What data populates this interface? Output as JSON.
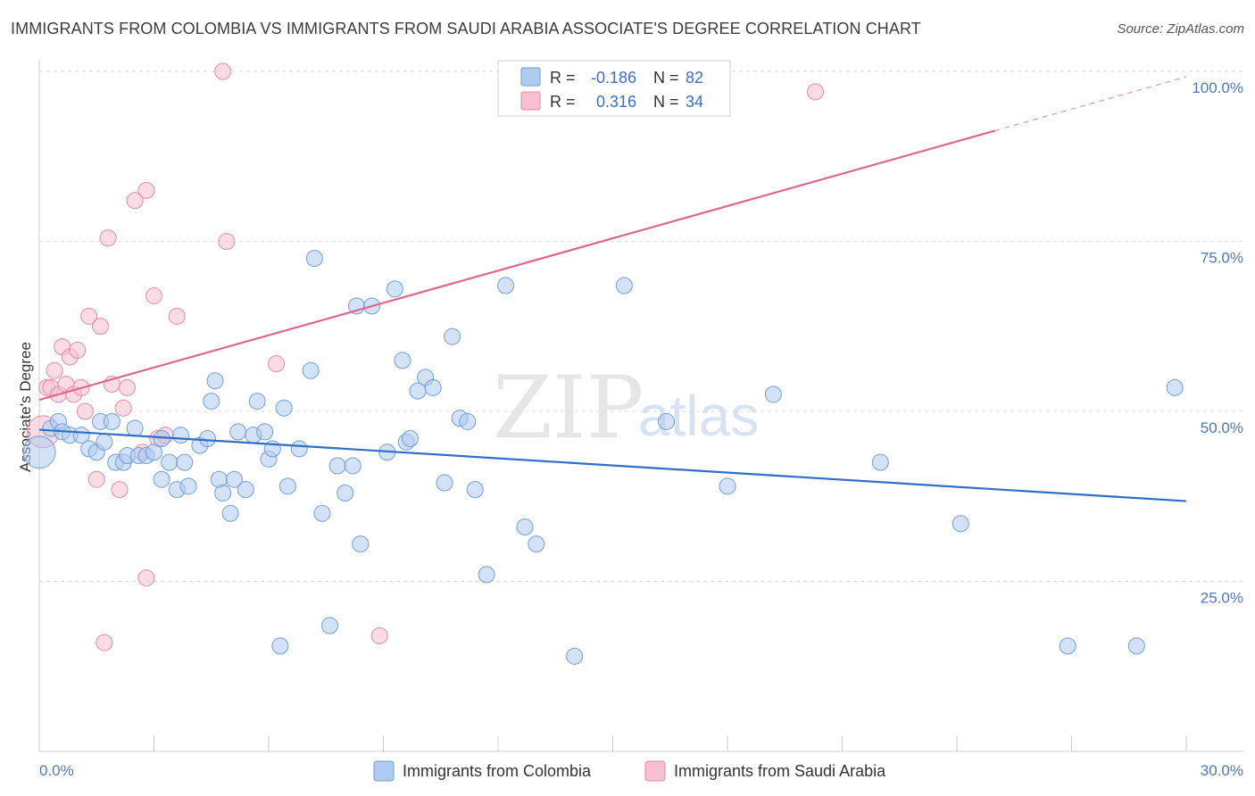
{
  "header": {
    "title": "IMMIGRANTS FROM COLOMBIA VS IMMIGRANTS FROM SAUDI ARABIA ASSOCIATE'S DEGREE CORRELATION CHART",
    "source": "Source: ZipAtlas.com"
  },
  "watermark": {
    "zip": "ZIP",
    "atlas": "atlas"
  },
  "colors": {
    "colombia_fill": "#aecbf0",
    "colombia_stroke": "#6f9fd8",
    "colombia_line": "#2f6fc6",
    "saudi_fill": "#f7c0d0",
    "saudi_stroke": "#e68aa6",
    "saudi_line": "#e0668f",
    "tick_label": "#4a78c4",
    "grid": "#dddddd"
  },
  "legend": {
    "rows": [
      {
        "r_label": "R =",
        "r_value": "-0.186",
        "n_label": "N =",
        "n_value": "82"
      },
      {
        "r_label": "R =",
        "r_value": "0.316",
        "n_label": "N =",
        "n_value": "34"
      }
    ]
  },
  "chart_data": {
    "type": "scatter",
    "title": "IMMIGRANTS FROM COLOMBIA VS IMMIGRANTS FROM SAUDI ARABIA ASSOCIATE'S DEGREE CORRELATION CHART",
    "xlabel": "",
    "ylabel": "Associate's Degree",
    "xlim": [
      0,
      30
    ],
    "ylim": [
      0,
      100
    ],
    "x_tick_labels": [
      "0.0%",
      "30.0%"
    ],
    "y_ticks": [
      25,
      50,
      75,
      100
    ],
    "y_tick_labels": [
      "25.0%",
      "50.0%",
      "75.0%",
      "100.0%"
    ],
    "grid": true,
    "series": [
      {
        "name": "Immigrants from Colombia",
        "r": -0.186,
        "n": 82,
        "trend": {
          "x": [
            0,
            30
          ],
          "y": [
            47.3,
            36.8
          ],
          "dashed_from_x": null
        },
        "points": [
          {
            "x": 0.0,
            "y": 44.0,
            "big": true
          },
          {
            "x": 0.3,
            "y": 47.5
          },
          {
            "x": 0.5,
            "y": 48.5
          },
          {
            "x": 0.6,
            "y": 47.0
          },
          {
            "x": 0.8,
            "y": 46.5
          },
          {
            "x": 1.1,
            "y": 46.5
          },
          {
            "x": 1.3,
            "y": 44.5
          },
          {
            "x": 1.5,
            "y": 44.0
          },
          {
            "x": 1.6,
            "y": 48.5
          },
          {
            "x": 1.7,
            "y": 45.5
          },
          {
            "x": 1.9,
            "y": 48.5
          },
          {
            "x": 2.0,
            "y": 42.5
          },
          {
            "x": 2.2,
            "y": 42.5
          },
          {
            "x": 2.3,
            "y": 43.5
          },
          {
            "x": 2.5,
            "y": 47.5
          },
          {
            "x": 2.6,
            "y": 43.5
          },
          {
            "x": 2.8,
            "y": 43.5
          },
          {
            "x": 3.0,
            "y": 44.0
          },
          {
            "x": 3.2,
            "y": 46.0
          },
          {
            "x": 3.2,
            "y": 40.0
          },
          {
            "x": 3.4,
            "y": 42.5
          },
          {
            "x": 3.6,
            "y": 38.5
          },
          {
            "x": 3.7,
            "y": 46.5
          },
          {
            "x": 3.8,
            "y": 42.5
          },
          {
            "x": 3.9,
            "y": 39.0
          },
          {
            "x": 4.2,
            "y": 45.0
          },
          {
            "x": 4.4,
            "y": 46.0
          },
          {
            "x": 4.5,
            "y": 51.5
          },
          {
            "x": 4.6,
            "y": 54.5
          },
          {
            "x": 4.7,
            "y": 40.0
          },
          {
            "x": 4.8,
            "y": 38.0
          },
          {
            "x": 5.0,
            "y": 35.0
          },
          {
            "x": 5.1,
            "y": 40.0
          },
          {
            "x": 5.2,
            "y": 47.0
          },
          {
            "x": 5.4,
            "y": 38.5
          },
          {
            "x": 5.6,
            "y": 46.5
          },
          {
            "x": 5.7,
            "y": 51.5
          },
          {
            "x": 5.9,
            "y": 47.0
          },
          {
            "x": 6.0,
            "y": 43.0
          },
          {
            "x": 6.1,
            "y": 44.5
          },
          {
            "x": 6.3,
            "y": 15.5
          },
          {
            "x": 6.4,
            "y": 50.5
          },
          {
            "x": 6.5,
            "y": 39.0
          },
          {
            "x": 6.8,
            "y": 44.5
          },
          {
            "x": 7.1,
            "y": 56.0
          },
          {
            "x": 7.2,
            "y": 72.5
          },
          {
            "x": 7.4,
            "y": 35.0
          },
          {
            "x": 7.6,
            "y": 18.5
          },
          {
            "x": 7.8,
            "y": 42.0
          },
          {
            "x": 8.0,
            "y": 38.0
          },
          {
            "x": 8.2,
            "y": 42.0
          },
          {
            "x": 8.3,
            "y": 65.5
          },
          {
            "x": 8.4,
            "y": 30.5
          },
          {
            "x": 8.7,
            "y": 65.5
          },
          {
            "x": 9.1,
            "y": 44.0
          },
          {
            "x": 9.3,
            "y": 68.0
          },
          {
            "x": 9.5,
            "y": 57.5
          },
          {
            "x": 9.6,
            "y": 45.5
          },
          {
            "x": 9.7,
            "y": 46.0
          },
          {
            "x": 9.9,
            "y": 53.0
          },
          {
            "x": 10.1,
            "y": 55.0
          },
          {
            "x": 10.3,
            "y": 53.5
          },
          {
            "x": 10.6,
            "y": 39.5
          },
          {
            "x": 10.8,
            "y": 61.0
          },
          {
            "x": 11.0,
            "y": 49.0
          },
          {
            "x": 11.2,
            "y": 48.5
          },
          {
            "x": 11.4,
            "y": 38.5
          },
          {
            "x": 11.7,
            "y": 26.0
          },
          {
            "x": 12.2,
            "y": 68.5
          },
          {
            "x": 12.7,
            "y": 33.0
          },
          {
            "x": 13.0,
            "y": 30.5
          },
          {
            "x": 14.0,
            "y": 14.0
          },
          {
            "x": 15.3,
            "y": 68.5
          },
          {
            "x": 16.4,
            "y": 48.5
          },
          {
            "x": 18.0,
            "y": 39.0
          },
          {
            "x": 19.2,
            "y": 52.5
          },
          {
            "x": 22.0,
            "y": 42.5
          },
          {
            "x": 24.1,
            "y": 33.5
          },
          {
            "x": 26.9,
            "y": 15.5
          },
          {
            "x": 28.7,
            "y": 15.5
          },
          {
            "x": 29.7,
            "y": 53.5
          }
        ]
      },
      {
        "name": "Immigrants from Saudi Arabia",
        "r": 0.316,
        "n": 34,
        "trend": {
          "x": [
            0,
            30
          ],
          "y": [
            51.7,
            99.2
          ],
          "dashed_from_x": 25.0
        },
        "points": [
          {
            "x": 0.1,
            "y": 47.0,
            "big": true
          },
          {
            "x": 0.2,
            "y": 53.5
          },
          {
            "x": 0.3,
            "y": 53.5
          },
          {
            "x": 0.4,
            "y": 56.0
          },
          {
            "x": 0.5,
            "y": 52.5
          },
          {
            "x": 0.6,
            "y": 59.5
          },
          {
            "x": 0.7,
            "y": 54.0
          },
          {
            "x": 0.8,
            "y": 58.0
          },
          {
            "x": 0.9,
            "y": 52.5
          },
          {
            "x": 1.0,
            "y": 59.0
          },
          {
            "x": 1.1,
            "y": 53.5
          },
          {
            "x": 1.2,
            "y": 50.0
          },
          {
            "x": 1.3,
            "y": 64.0
          },
          {
            "x": 1.5,
            "y": 40.0
          },
          {
            "x": 1.6,
            "y": 62.5
          },
          {
            "x": 1.7,
            "y": 16.0
          },
          {
            "x": 1.8,
            "y": 75.5
          },
          {
            "x": 1.9,
            "y": 54.0
          },
          {
            "x": 2.1,
            "y": 38.5
          },
          {
            "x": 2.2,
            "y": 50.5
          },
          {
            "x": 2.3,
            "y": 53.5
          },
          {
            "x": 2.5,
            "y": 81.0
          },
          {
            "x": 2.7,
            "y": 44.0
          },
          {
            "x": 2.8,
            "y": 82.5
          },
          {
            "x": 2.8,
            "y": 25.5
          },
          {
            "x": 3.0,
            "y": 67.0
          },
          {
            "x": 3.1,
            "y": 46.0
          },
          {
            "x": 3.3,
            "y": 46.5
          },
          {
            "x": 3.6,
            "y": 64.0
          },
          {
            "x": 4.8,
            "y": 100.0
          },
          {
            "x": 4.9,
            "y": 75.0
          },
          {
            "x": 6.2,
            "y": 57.0
          },
          {
            "x": 8.9,
            "y": 17.0
          },
          {
            "x": 20.3,
            "y": 97.0
          }
        ]
      }
    ]
  }
}
